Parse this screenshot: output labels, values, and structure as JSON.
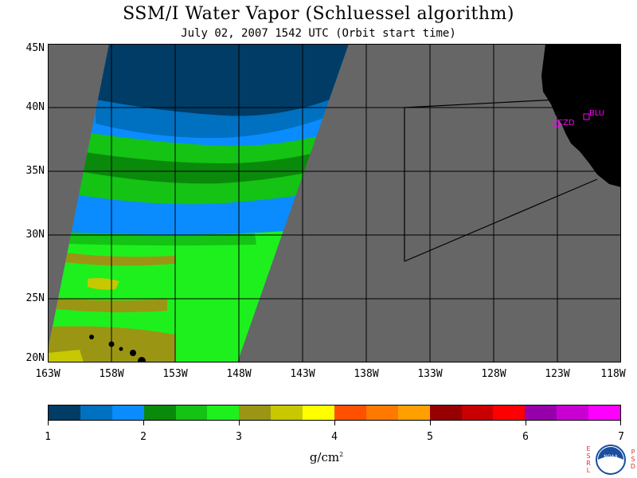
{
  "title": "SSM/I Water Vapor (Schluessel algorithm)",
  "subtitle": "July 02, 2007  1542 UTC  (Orbit start time)",
  "axes": {
    "lat_labels": [
      "45N",
      "40N",
      "35N",
      "30N",
      "25N",
      "20N"
    ],
    "lon_labels": [
      "163W",
      "158W",
      "153W",
      "148W",
      "143W",
      "138W",
      "133W",
      "128W",
      "123W",
      "118W"
    ]
  },
  "stations": [
    {
      "id": "CZD",
      "label": "CZD",
      "lon": -123.1,
      "lat": 38.6
    },
    {
      "id": "BLU",
      "label": "BLU",
      "lon": -120.9,
      "lat": 39.3
    }
  ],
  "colorbar": {
    "unit": "g/cm",
    "unit_exponent": "2",
    "ticks": [
      "1",
      "2",
      "3",
      "4",
      "5",
      "6",
      "7"
    ],
    "colors": [
      "#003c66",
      "#0070c0",
      "#0a8cff",
      "#0a8a0a",
      "#14c314",
      "#1ef01e",
      "#9a9614",
      "#c8c800",
      "#ffff00",
      "#ff5000",
      "#ff7800",
      "#ffa000",
      "#960000",
      "#c80000",
      "#ff0000",
      "#9600aa",
      "#c800d2",
      "#ff00ff"
    ]
  },
  "colors": {
    "no_data": "#666666",
    "land": "#000000",
    "station": "#ff00ff"
  },
  "logo": {
    "left_letters": "ESRL",
    "right_letters": "PSD",
    "emblem_text": "NOAA"
  }
}
